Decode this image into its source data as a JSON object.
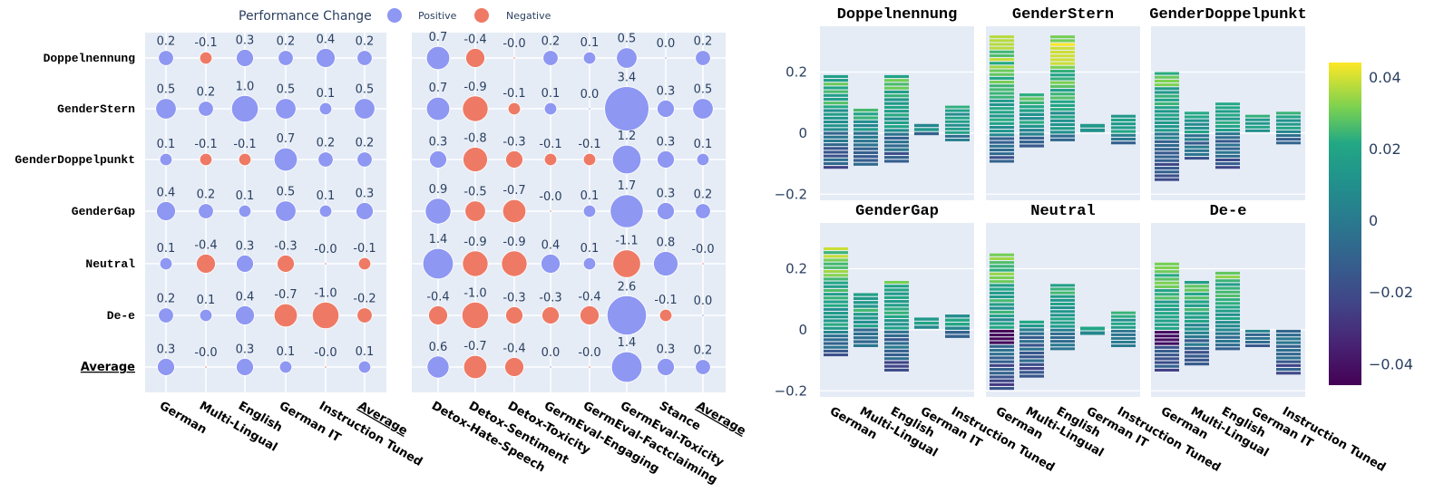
{
  "chart_data": [
    {
      "type": "scatter",
      "name": "bubble-matrix",
      "legend": {
        "title": "Performance Change",
        "positive": "Positive",
        "negative": "Negative",
        "placement": "top-center"
      },
      "colors": {
        "positive": "#8e97f2",
        "negative": "#ee7a66",
        "panel_bg": "#e5ecf6"
      },
      "rows": [
        "Doppelnennung",
        "GenderStern",
        "GenderDoppelpunkt",
        "GenderGap",
        "Neutral",
        "De-e",
        "Average"
      ],
      "panels": [
        {
          "columns": [
            "German",
            "Multi-Lingual",
            "English",
            "German IT",
            "Instruction Tuned",
            "Average"
          ],
          "labels": [
            [
              "0.2",
              "-0.1",
              "0.3",
              "0.2",
              "0.4",
              "0.2"
            ],
            [
              "0.5",
              "0.2",
              "1.0",
              "0.5",
              "0.1",
              "0.5"
            ],
            [
              "0.1",
              "-0.1",
              "-0.1",
              "0.7",
              "0.2",
              "0.2"
            ],
            [
              "0.4",
              "0.2",
              "0.1",
              "0.5",
              "0.1",
              "0.3"
            ],
            [
              "0.1",
              "-0.4",
              "0.3",
              "-0.3",
              "-0.0",
              "-0.1"
            ],
            [
              "0.2",
              "0.1",
              "0.4",
              "-0.7",
              "-1.0",
              "-0.2"
            ],
            [
              "0.3",
              "-0.0",
              "0.3",
              "0.1",
              "-0.0",
              "0.1"
            ]
          ]
        },
        {
          "columns": [
            "Detox-Hate-Speech",
            "Detox-Sentiment",
            "Detox-Toxicity",
            "GermEval-Engaging",
            "GermEval-Factclaiming",
            "GermEval-Toxicity",
            "Stance",
            "Average"
          ],
          "labels": [
            [
              "0.7",
              "-0.4",
              "-0.0",
              "0.2",
              "0.1",
              "0.5",
              "0.0",
              "0.2"
            ],
            [
              "0.7",
              "-0.9",
              "-0.1",
              "0.1",
              "0.0",
              "3.4",
              "0.3",
              "0.5"
            ],
            [
              "0.3",
              "-0.8",
              "-0.3",
              "-0.1",
              "-0.1",
              "1.2",
              "0.3",
              "0.1"
            ],
            [
              "0.9",
              "-0.5",
              "-0.7",
              "-0.0",
              "0.1",
              "1.7",
              "0.3",
              "0.2"
            ],
            [
              "1.4",
              "-0.9",
              "-0.9",
              "0.4",
              "0.1",
              "-1.1",
              "0.8",
              "-0.0"
            ],
            [
              "-0.4",
              "-1.0",
              "-0.3",
              "-0.3",
              "-0.4",
              "2.6",
              "-0.1",
              "0.0"
            ],
            [
              "0.6",
              "-0.7",
              "-0.4",
              "0.0",
              "-0.0",
              "1.4",
              "0.3",
              "0.2"
            ]
          ]
        }
      ]
    },
    {
      "type": "bar",
      "name": "stacked-colored-bars",
      "subplots": [
        "Doppelnennung",
        "GenderStern",
        "GenderDoppelpunkt",
        "GenderGap",
        "Neutral",
        "De-e"
      ],
      "categories": [
        "German",
        "Multi-Lingual",
        "English",
        "German IT",
        "Instruction Tuned"
      ],
      "y_ticks": [
        "0.2",
        "0",
        "−0.2"
      ],
      "ylim": [
        -0.22,
        0.35
      ],
      "ranges": [
        [
          [
            -0.12,
            0.19
          ],
          [
            -0.11,
            0.08
          ],
          [
            -0.1,
            0.19
          ],
          [
            -0.01,
            0.03
          ],
          [
            -0.03,
            0.09
          ]
        ],
        [
          [
            -0.1,
            0.32
          ],
          [
            -0.05,
            0.13
          ],
          [
            -0.03,
            0.32
          ],
          [
            0.0,
            0.03
          ],
          [
            -0.04,
            0.06
          ]
        ],
        [
          [
            -0.16,
            0.2
          ],
          [
            -0.09,
            0.07
          ],
          [
            -0.12,
            0.1
          ],
          [
            0.0,
            0.06
          ],
          [
            -0.04,
            0.07
          ]
        ],
        [
          [
            -0.09,
            0.27
          ],
          [
            -0.06,
            0.12
          ],
          [
            -0.14,
            0.16
          ],
          [
            0.0,
            0.04
          ],
          [
            -0.03,
            0.05
          ]
        ],
        [
          [
            -0.2,
            0.25
          ],
          [
            -0.16,
            0.03
          ],
          [
            -0.07,
            0.15
          ],
          [
            -0.02,
            0.01
          ],
          [
            -0.06,
            0.06
          ]
        ],
        [
          [
            -0.14,
            0.22
          ],
          [
            -0.12,
            0.16
          ],
          [
            -0.07,
            0.19
          ],
          [
            -0.06,
            0.0
          ],
          [
            -0.15,
            0.0
          ]
        ]
      ],
      "colorbar": {
        "ticks": [
          "0.04",
          "0.02",
          "0",
          "−0.02",
          "−0.04"
        ],
        "min": -0.046,
        "max": 0.044
      }
    }
  ]
}
